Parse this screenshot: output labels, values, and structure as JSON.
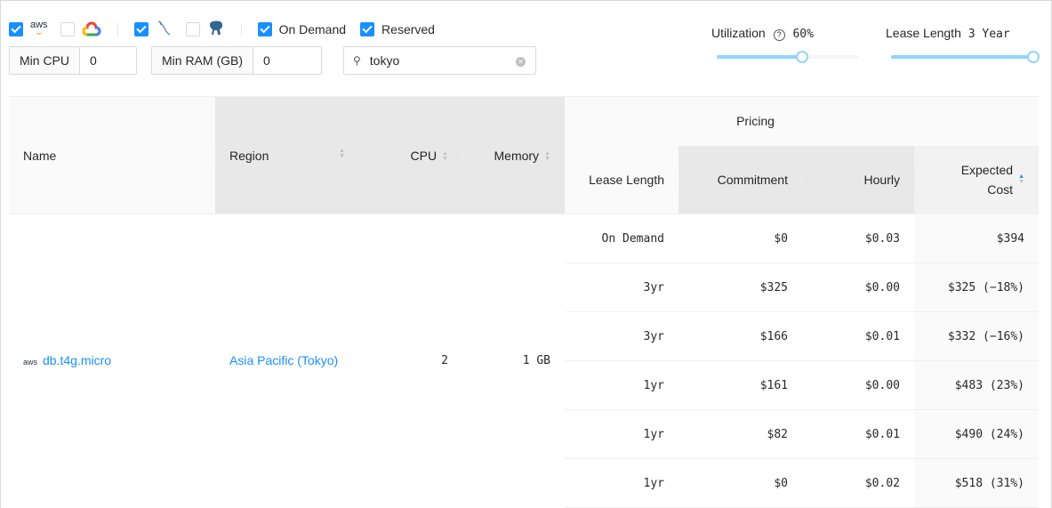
{
  "filters": {
    "providers": [
      {
        "name": "aws",
        "checked": true
      },
      {
        "name": "gcp",
        "checked": false
      }
    ],
    "engines": [
      {
        "name": "mysql",
        "checked": true
      },
      {
        "name": "postgres",
        "checked": false
      }
    ],
    "on_demand": {
      "label": "On Demand",
      "checked": true
    },
    "reserved": {
      "label": "Reserved",
      "checked": true
    },
    "min_cpu": {
      "label": "Min CPU",
      "value": "0"
    },
    "min_ram": {
      "label": "Min RAM (GB)",
      "value": "0"
    },
    "search": {
      "value": "tokyo"
    },
    "aws_logo_text": "aws"
  },
  "utilization": {
    "label": "Utilization",
    "value": "60%",
    "fraction": 0.6
  },
  "lease": {
    "label": "Lease Length",
    "value": "3 Year",
    "fraction": 1.0
  },
  "table": {
    "headers": {
      "name": "Name",
      "region": "Region",
      "cpu": "CPU",
      "memory": "Memory",
      "pricing": "Pricing",
      "lease": "Lease Length",
      "commitment": "Commitment",
      "hourly": "Hourly",
      "expected": "Expected Cost"
    },
    "instance": {
      "name": "db.t4g.micro",
      "region": "Asia Pacific (Tokyo)",
      "cpu": "2",
      "memory": "1 GB"
    },
    "rows": [
      {
        "lease": "On Demand",
        "commitment": "$0",
        "hourly": "$0.03",
        "expected": "$394"
      },
      {
        "lease": "3yr",
        "commitment": "$325",
        "hourly": "$0.00",
        "expected": "$325 (−18%)"
      },
      {
        "lease": "3yr",
        "commitment": "$166",
        "hourly": "$0.01",
        "expected": "$332 (−16%)"
      },
      {
        "lease": "1yr",
        "commitment": "$161",
        "hourly": "$0.00",
        "expected": "$483 (23%)"
      },
      {
        "lease": "1yr",
        "commitment": "$82",
        "hourly": "$0.01",
        "expected": "$490 (24%)"
      },
      {
        "lease": "1yr",
        "commitment": "$0",
        "hourly": "$0.02",
        "expected": "$518 (31%)"
      }
    ]
  },
  "colors": {
    "accent": "#1890ff",
    "slider": "#91d5ff"
  }
}
